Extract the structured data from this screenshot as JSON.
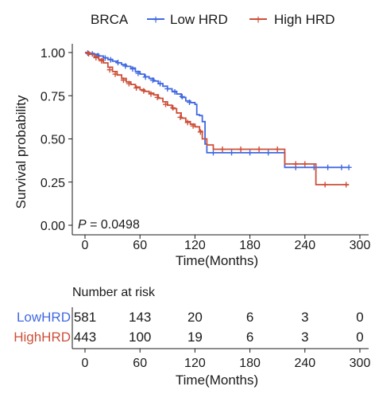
{
  "chart_data": {
    "type": "line",
    "subtype": "kaplan-meier",
    "legend_title": "BRCA",
    "legend_position": "top",
    "xlabel": "Time(Months)",
    "ylabel": "Survival probability",
    "xlim": [
      0,
      300
    ],
    "ylim": [
      0,
      1
    ],
    "x_ticks": [
      0,
      60,
      120,
      180,
      240,
      300
    ],
    "y_ticks": [
      0.0,
      0.25,
      0.5,
      0.75,
      1.0
    ],
    "y_tick_labels": [
      "0.00",
      "0.25",
      "0.50",
      "0.75",
      "1.00"
    ],
    "grid": false,
    "annotation": {
      "p_label": "P",
      "p_rest": " = 0.0498",
      "x": 0,
      "y": 0.0
    },
    "series": [
      {
        "name": "Low HRD",
        "color": "#4169e1",
        "x": [
          0,
          5,
          10,
          15,
          20,
          25,
          30,
          35,
          40,
          45,
          50,
          55,
          60,
          65,
          70,
          75,
          80,
          85,
          90,
          95,
          100,
          105,
          110,
          115,
          120,
          122,
          125,
          128,
          131,
          133,
          215,
          218,
          288
        ],
        "y": [
          1.0,
          0.995,
          0.99,
          0.98,
          0.97,
          0.96,
          0.95,
          0.94,
          0.93,
          0.92,
          0.91,
          0.89,
          0.875,
          0.86,
          0.85,
          0.835,
          0.82,
          0.805,
          0.79,
          0.775,
          0.76,
          0.74,
          0.72,
          0.71,
          0.7,
          0.64,
          0.635,
          0.6,
          0.47,
          0.42,
          0.42,
          0.335,
          0.335
        ],
        "censor_x": [
          3,
          8,
          14,
          22,
          28,
          36,
          44,
          52,
          58,
          66,
          74,
          82,
          90,
          98,
          106,
          114,
          140,
          160,
          180,
          200,
          230,
          250,
          265,
          280,
          288
        ],
        "censor_y": [
          0.997,
          0.992,
          0.982,
          0.968,
          0.958,
          0.942,
          0.922,
          0.905,
          0.88,
          0.858,
          0.84,
          0.82,
          0.79,
          0.772,
          0.745,
          0.712,
          0.42,
          0.42,
          0.42,
          0.42,
          0.335,
          0.335,
          0.335,
          0.335,
          0.335
        ]
      },
      {
        "name": "High HRD",
        "color": "#cd4f39",
        "x": [
          0,
          5,
          10,
          15,
          20,
          25,
          30,
          35,
          40,
          45,
          50,
          55,
          60,
          65,
          70,
          75,
          80,
          85,
          90,
          95,
          100,
          105,
          110,
          115,
          120,
          125,
          128,
          133,
          140,
          215,
          218,
          250,
          252,
          288
        ],
        "y": [
          1.0,
          0.99,
          0.975,
          0.96,
          0.94,
          0.915,
          0.89,
          0.87,
          0.85,
          0.83,
          0.815,
          0.8,
          0.785,
          0.775,
          0.765,
          0.755,
          0.735,
          0.715,
          0.695,
          0.675,
          0.65,
          0.62,
          0.6,
          0.585,
          0.57,
          0.545,
          0.5,
          0.465,
          0.44,
          0.44,
          0.355,
          0.355,
          0.235,
          0.235
        ],
        "censor_x": [
          4,
          12,
          18,
          27,
          33,
          42,
          48,
          56,
          64,
          72,
          79,
          88,
          96,
          104,
          112,
          118,
          126,
          150,
          170,
          190,
          210,
          230,
          240,
          262,
          285
        ],
        "censor_y": [
          0.993,
          0.97,
          0.952,
          0.9,
          0.875,
          0.84,
          0.82,
          0.795,
          0.778,
          0.76,
          0.74,
          0.7,
          0.68,
          0.625,
          0.595,
          0.575,
          0.54,
          0.44,
          0.44,
          0.44,
          0.44,
          0.355,
          0.355,
          0.235,
          0.235
        ]
      }
    ]
  },
  "risk_table": {
    "title": "Number at risk",
    "xlabel": "Time(Months)",
    "x_ticks": [
      0,
      60,
      120,
      180,
      240,
      300
    ],
    "rows": [
      {
        "label": "LowHRD",
        "color": "#4169e1",
        "counts": [
          "581",
          "143",
          "20",
          "6",
          "3",
          "0"
        ]
      },
      {
        "label": "HighHRD",
        "color": "#cd4f39",
        "counts": [
          "443",
          "100",
          "19",
          "6",
          "3",
          "0"
        ]
      }
    ]
  }
}
